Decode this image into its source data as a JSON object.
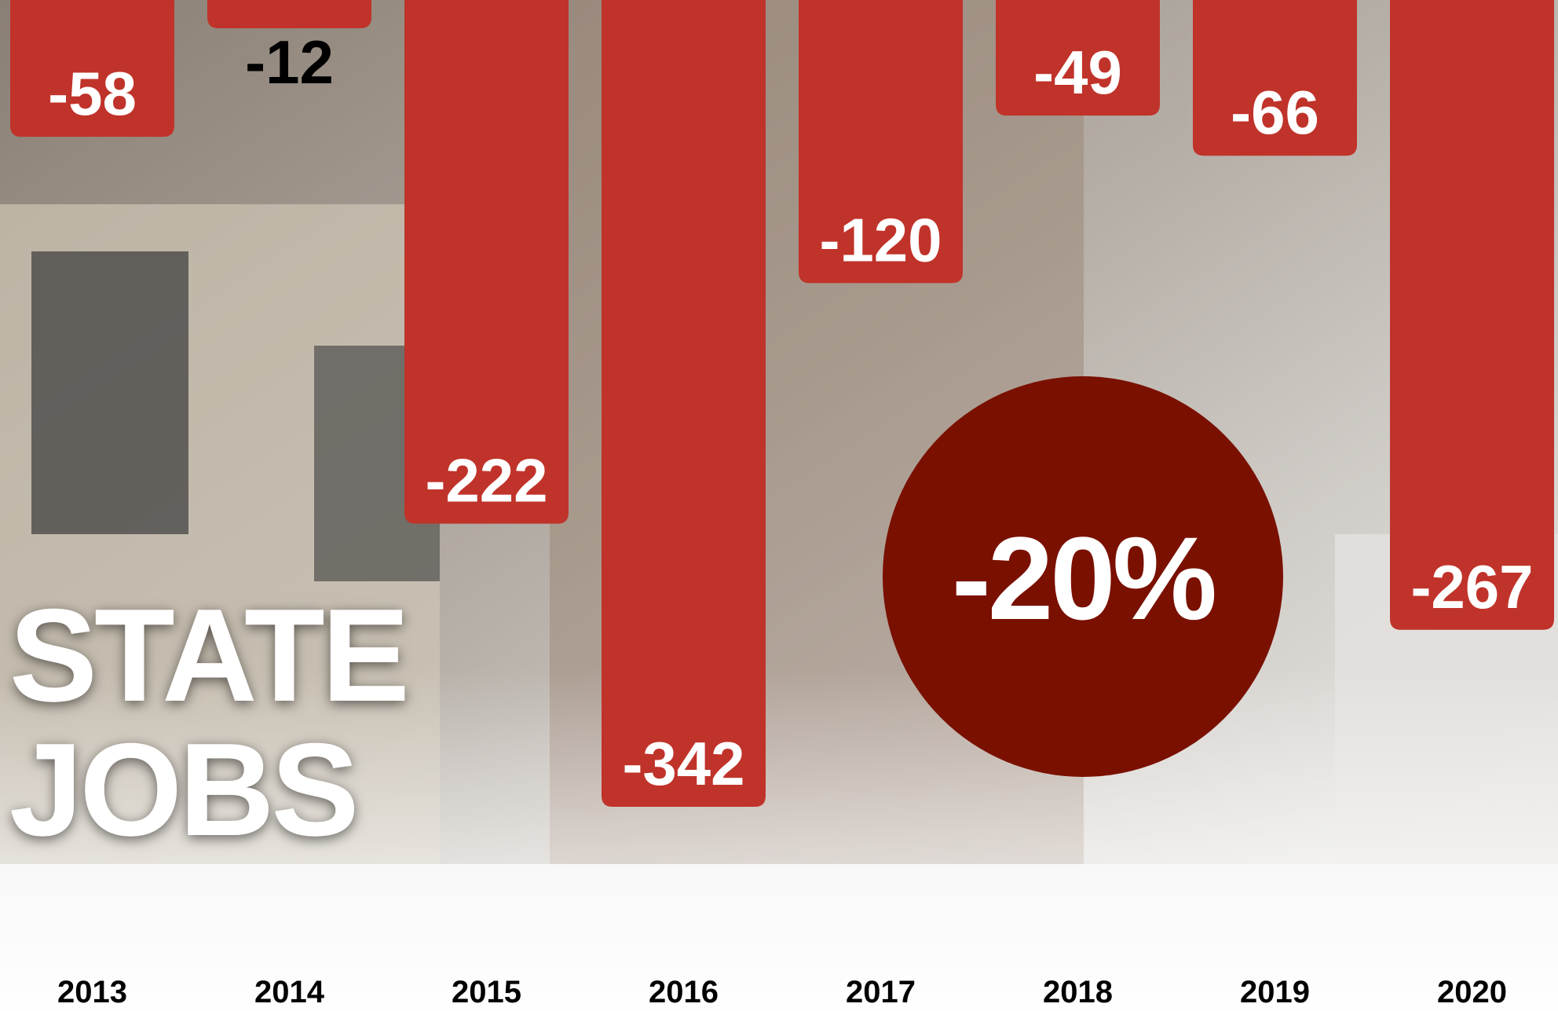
{
  "chart_data": {
    "type": "bar",
    "title": [
      "STATE",
      "JOBS"
    ],
    "categories": [
      "2013",
      "2014",
      "2015",
      "2016",
      "2017",
      "2018",
      "2019",
      "2020"
    ],
    "values": [
      -58,
      -12,
      -222,
      -342,
      -120,
      -49,
      -66,
      -267
    ],
    "color": "#c0332a",
    "ylim": [
      0,
      -342
    ],
    "annotation": {
      "text": "-20%",
      "color": "#7a1000"
    }
  }
}
